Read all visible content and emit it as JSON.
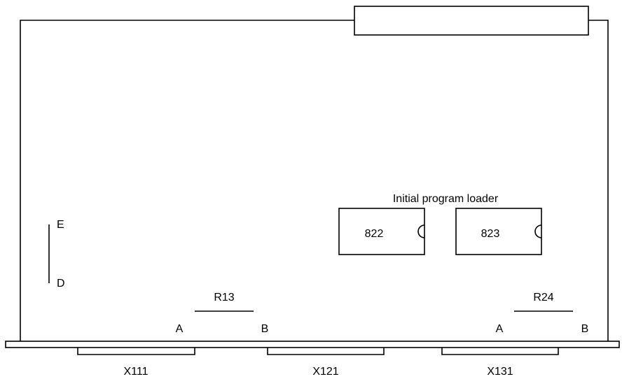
{
  "loader": {
    "title": "Initial program loader"
  },
  "chips": [
    {
      "label": "822"
    },
    {
      "label": "823"
    }
  ],
  "jumpers": [
    {
      "name": "R13",
      "end_a": "A",
      "end_b": "B"
    },
    {
      "name": "R24",
      "end_a": "A",
      "end_b": "B"
    }
  ],
  "switch": {
    "top": "E",
    "bottom": "D"
  },
  "connectors": [
    {
      "label": "X111"
    },
    {
      "label": "X121"
    },
    {
      "label": "X131"
    }
  ]
}
